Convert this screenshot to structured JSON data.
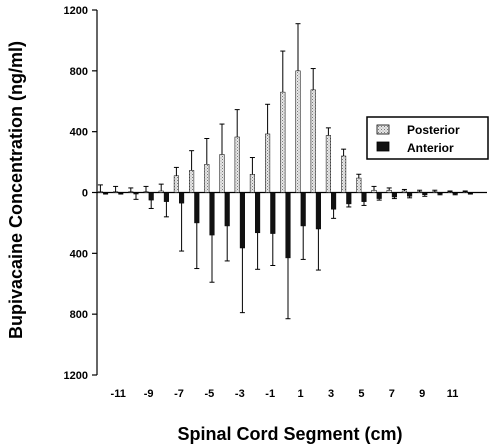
{
  "chart_data": {
    "type": "bar",
    "xlabel": "Spinal Cord Segment (cm)",
    "ylabel": "Bupivacaine Concentration (ng/ml)",
    "ylim": [
      -1200,
      1200
    ],
    "y_ticks": [
      {
        "value": 1200,
        "label": "1200"
      },
      {
        "value": 800,
        "label": "800"
      },
      {
        "value": 400,
        "label": "400"
      },
      {
        "value": 0,
        "label": "0"
      },
      {
        "value": -400,
        "label": "400"
      },
      {
        "value": -800,
        "label": "800"
      },
      {
        "value": -1200,
        "label": "1200"
      }
    ],
    "x_tick_labels": [
      "-11",
      "-9",
      "-7",
      "-5",
      "-3",
      "-1",
      "1",
      "3",
      "5",
      "7",
      "9",
      "11"
    ],
    "x": [
      -12,
      -11,
      -10,
      -9,
      -8,
      -7,
      -6,
      -5,
      -4,
      -3,
      -2,
      -1,
      0,
      1,
      2,
      3,
      4,
      5,
      6,
      7,
      8,
      9,
      10,
      11,
      12
    ],
    "legend_position": "right",
    "series": [
      {
        "name": "Posterior",
        "color": "#c8c8c8",
        "values": [
          5,
          5,
          5,
          5,
          10,
          110,
          145,
          185,
          250,
          365,
          120,
          385,
          660,
          800,
          675,
          375,
          240,
          95,
          15,
          15,
          10,
          5,
          5,
          5,
          5
        ],
        "errors": [
          45,
          35,
          25,
          35,
          45,
          55,
          130,
          170,
          200,
          180,
          110,
          195,
          270,
          310,
          140,
          50,
          45,
          25,
          25,
          15,
          10,
          10,
          10,
          5,
          5
        ]
      },
      {
        "name": "Anterior",
        "color": "#111111",
        "values": [
          5,
          5,
          10,
          50,
          60,
          70,
          200,
          280,
          220,
          365,
          265,
          270,
          430,
          220,
          240,
          110,
          75,
          60,
          40,
          30,
          25,
          15,
          10,
          10,
          5
        ],
        "errors": [
          5,
          5,
          35,
          55,
          100,
          315,
          300,
          310,
          230,
          425,
          240,
          210,
          400,
          220,
          270,
          60,
          20,
          25,
          10,
          10,
          10,
          10,
          5,
          5,
          5
        ]
      }
    ]
  }
}
